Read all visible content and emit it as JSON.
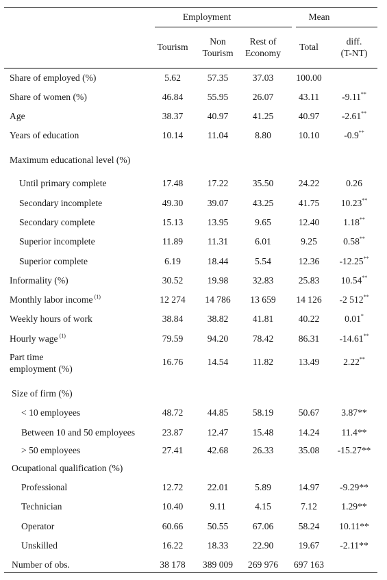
{
  "header": {
    "group_employment": "Employment",
    "group_mean": "Mean",
    "col_tourism": "Tourism",
    "col_non_tourism_1": "Non",
    "col_non_tourism_2": "Tourism",
    "col_rest_1": "Rest of",
    "col_rest_2": "Economy",
    "col_total": "Total",
    "col_diff_1": "diff.",
    "col_diff_2": "(T-NT)"
  },
  "rows": [
    {
      "label": "Share of employed (%)",
      "v": [
        "5.62",
        "57.35",
        "37.03",
        "100.00",
        ""
      ],
      "sup": ""
    },
    {
      "label": "Share of women (%)",
      "v": [
        "46.84",
        "55.95",
        "26.07",
        "43.11",
        "-9.11"
      ],
      "sup": "**"
    },
    {
      "label": "Age",
      "v": [
        "38.37",
        "40.97",
        "41.25",
        "40.97",
        "-2.61"
      ],
      "sup": "**"
    },
    {
      "label": "Years of education",
      "v": [
        "10.14",
        "11.04",
        "8.80",
        "10.10",
        "-0.9"
      ],
      "sup": "**"
    },
    {
      "label": "Maximum educational level (%)",
      "v": [
        "",
        "",
        "",
        "",
        ""
      ],
      "sup": ""
    },
    {
      "label": "Until primary complete",
      "v": [
        "17.48",
        "17.22",
        "35.50",
        "24.22",
        "0.26"
      ],
      "sup": ""
    },
    {
      "label": "Secondary incomplete",
      "v": [
        "49.30",
        "39.07",
        "43.25",
        "41.75",
        "10.23"
      ],
      "sup": "**"
    },
    {
      "label": "Secondary complete",
      "v": [
        "15.13",
        "13.95",
        "9.65",
        "12.40",
        "1.18"
      ],
      "sup": "**"
    },
    {
      "label": "Superior incomplete",
      "v": [
        "11.89",
        "11.31",
        "6.01",
        "9.25",
        "0.58"
      ],
      "sup": "**"
    },
    {
      "label": "Superior complete",
      "v": [
        "6.19",
        "18.44",
        "5.54",
        "12.36",
        "-12.25"
      ],
      "sup": "**"
    },
    {
      "label": "Informality (%)",
      "v": [
        "30.52",
        "19.98",
        "32.83",
        "25.83",
        "10.54"
      ],
      "sup": "**"
    },
    {
      "label": "Monthly labor income",
      "label_sup": "(1)",
      "v": [
        "12 274",
        "14 786",
        "13 659",
        "14 126",
        "-2 512"
      ],
      "sup": "**"
    },
    {
      "label": "Weekly hours of work",
      "v": [
        "38.84",
        "38.82",
        "41.81",
        "40.22",
        "0.01"
      ],
      "sup": "*"
    },
    {
      "label": "Hourly wage",
      "label_sup": "(1)",
      "v": [
        "79.59",
        "94.20",
        "78.42",
        "86.31",
        "-14.61"
      ],
      "sup": "**"
    },
    {
      "label_1": "Part time",
      "label_2": "employment (%)",
      "v": [
        "16.76",
        "14.54",
        "11.82",
        "13.49",
        "2.22"
      ],
      "sup": "**"
    },
    {
      "label": "Size of firm (%)",
      "v": [
        "",
        "",
        "",
        "",
        ""
      ]
    },
    {
      "label": "< 10 employees",
      "v": [
        "48.72",
        "44.85",
        "58.19",
        "50.67",
        "3.87**"
      ]
    },
    {
      "label": "Between 10 and 50 employees",
      "v": [
        "23.87",
        "12.47",
        "15.48",
        "14.24",
        "11.4**"
      ]
    },
    {
      "label": "> 50 employees",
      "v": [
        "27.41",
        "42.68",
        "26.33",
        "35.08",
        "-15.27**"
      ]
    },
    {
      "label": "Ocupational qualification (%)",
      "v": [
        "",
        "",
        "",
        "",
        ""
      ]
    },
    {
      "label": "Professional",
      "v": [
        "12.72",
        "22.01",
        "5.89",
        "14.97",
        "-9.29**"
      ]
    },
    {
      "label": "Technician",
      "v": [
        "10.40",
        "9.11",
        "4.15",
        "7.12",
        "1.29**"
      ]
    },
    {
      "label": "Operator",
      "v": [
        "60.66",
        "50.55",
        "67.06",
        "58.24",
        "10.11**"
      ]
    },
    {
      "label": "Unskilled",
      "v": [
        "16.22",
        "18.33",
        "22.90",
        "19.67",
        "-2.11**"
      ]
    },
    {
      "label": "Number of obs.",
      "v": [
        "38 178",
        "389 009",
        "269 976",
        "697 163",
        ""
      ]
    }
  ]
}
